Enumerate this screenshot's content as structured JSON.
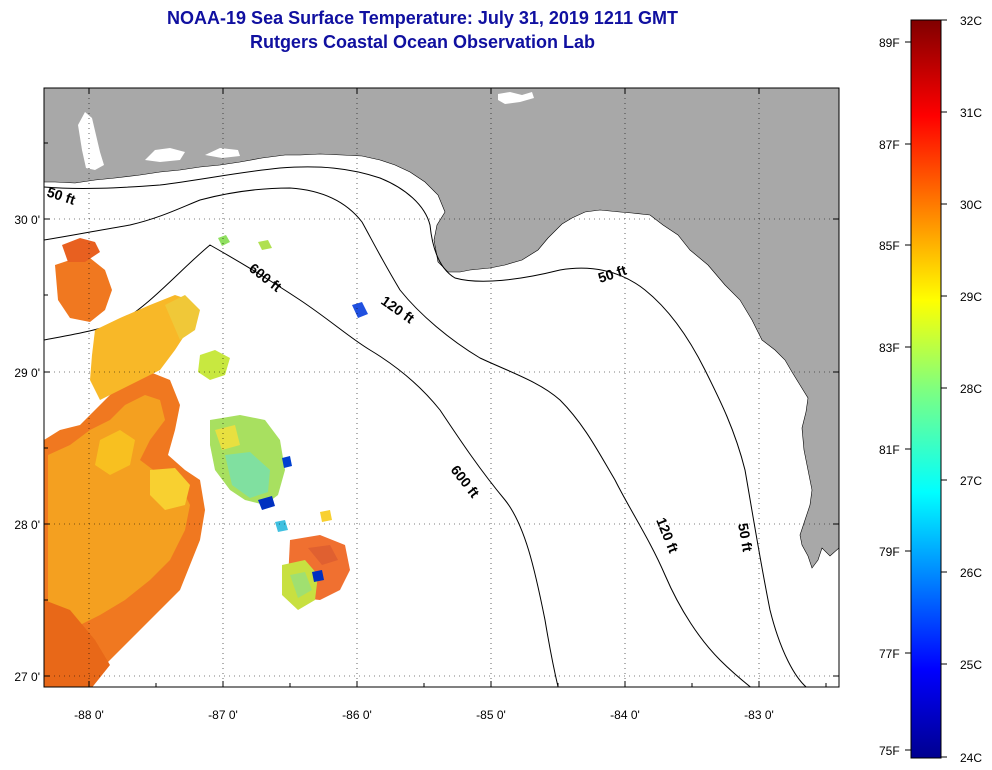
{
  "title_line1": "NOAA-19 Sea Surface Temperature:  July 31, 2019 1211 GMT",
  "title_line2": "Rutgers Coastal Ocean Observation Lab",
  "lon_labels": [
    "-88 0'",
    "-87 0'",
    "-86 0'",
    "-85 0'",
    "-84 0'",
    "-83 0'"
  ],
  "lat_labels": [
    "30 0'",
    "29 0'",
    "28 0'",
    "27 0'"
  ],
  "contour_labels": [
    "50 ft",
    "600 ft",
    "120 ft",
    "50 ft",
    "600 ft",
    "120 ft",
    "50 ft"
  ],
  "colorbar": {
    "celsius_labels": [
      "32C",
      "31C",
      "30C",
      "29C",
      "28C",
      "27C",
      "26C",
      "25C",
      "24C"
    ],
    "fahrenheit_labels": [
      "89F",
      "87F",
      "85F",
      "83F",
      "81F",
      "79F",
      "77F",
      "75F"
    ],
    "colormap": [
      "#00008f",
      "#0000ff",
      "#00ffff",
      "#7fff7f",
      "#ffff00",
      "#ff0000",
      "#800000"
    ]
  },
  "colors": {
    "land": "#a8a8a8",
    "title": "#1010a0",
    "sst_warm": "#f07820",
    "sst_mid": "#f8c020",
    "sst_cool": "#90e060",
    "sst_cold": "#0030c0"
  }
}
